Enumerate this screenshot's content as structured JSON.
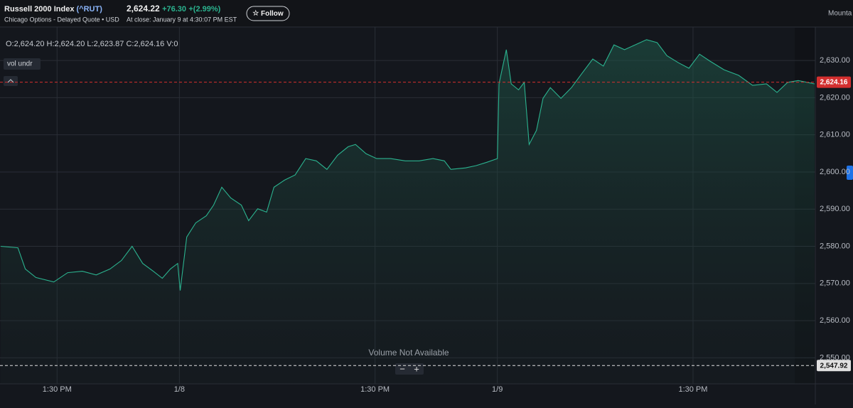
{
  "header": {
    "title": "Russell 2000 Index",
    "symbol": "(^RUT)",
    "exchange": "Chicago Options - Delayed Quote • USD",
    "price": "2,624.22",
    "change": "+76.30",
    "change_pct": "+(2.99%)",
    "close_time": "At close: January 9 at 4:30:07 PM EST",
    "follow": "Follow",
    "right_tab": "Mounta"
  },
  "ohlc": {
    "open": "O:2,624.20",
    "high": "H:2,624.20",
    "low": "L:2,623.87",
    "close": "C:2,624.16",
    "volume": "V:0"
  },
  "indicator": "vol undr",
  "volume_note": "Volume Not Available",
  "zoom": {
    "out": "−",
    "in": "+"
  },
  "chart_data": {
    "type": "line",
    "color": "#2bb38f",
    "grid": true,
    "xlim": [
      170,
      1170
    ],
    "ylim": [
      2543,
      2639
    ],
    "xticks": [
      {
        "value": 240,
        "label": "1:30 PM"
      },
      {
        "value": 390,
        "label": "1/8"
      },
      {
        "value": 630,
        "label": "1:30 PM"
      },
      {
        "value": 780,
        "label": "1/9"
      },
      {
        "value": 1020,
        "label": "1:30 PM"
      }
    ],
    "yticks": [
      {
        "value": 2550,
        "label": "2,550.00"
      },
      {
        "value": 2560,
        "label": "2,560.00"
      },
      {
        "value": 2570,
        "label": "2,570.00"
      },
      {
        "value": 2580,
        "label": "2,580.00"
      },
      {
        "value": 2590,
        "label": "2,590.00"
      },
      {
        "value": 2600,
        "label": "2,600.00"
      },
      {
        "value": 2610,
        "label": "2,610.00"
      },
      {
        "value": 2620,
        "label": "2,620.00"
      },
      {
        "value": 2630,
        "label": "2,630.00"
      }
    ],
    "price_lines": [
      {
        "value": 2624.16,
        "label": "2,624.16",
        "color": "#d32f2f"
      },
      {
        "value": 2547.92,
        "label": "2,547.92",
        "color": "#e0e0e0"
      }
    ],
    "x": [
      171,
      192,
      201,
      214,
      236,
      253,
      271,
      288,
      305,
      319,
      332,
      345,
      358,
      369,
      379,
      388,
      391,
      399,
      410,
      423,
      432,
      442,
      453,
      466,
      475,
      486,
      497,
      506,
      519,
      532,
      545,
      558,
      571,
      584,
      597,
      606,
      619,
      632,
      649,
      667,
      684,
      701,
      715,
      723,
      741,
      754,
      767,
      780,
      782,
      791,
      797,
      806,
      813,
      819,
      828,
      836,
      845,
      858,
      871,
      884,
      897,
      910,
      923,
      936,
      949,
      963,
      976,
      988,
      1002,
      1015,
      1028,
      1041,
      1058,
      1076,
      1093,
      1110,
      1123,
      1136,
      1149,
      1169
    ],
    "values": [
      2580.0,
      2579.6,
      2573.9,
      2571.6,
      2570.4,
      2572.9,
      2573.3,
      2572.3,
      2573.9,
      2576.2,
      2580.0,
      2575.4,
      2573.3,
      2571.4,
      2573.9,
      2575.4,
      2568.1,
      2582.5,
      2586.3,
      2588.2,
      2591.1,
      2595.9,
      2593.0,
      2591.1,
      2586.9,
      2590.1,
      2589.2,
      2595.9,
      2597.8,
      2599.2,
      2603.6,
      2603.0,
      2600.7,
      2604.5,
      2606.8,
      2607.4,
      2604.9,
      2603.6,
      2603.6,
      2603.0,
      2603.0,
      2603.6,
      2603.0,
      2600.7,
      2601.1,
      2601.7,
      2602.6,
      2603.6,
      2623.7,
      2632.9,
      2623.7,
      2622.1,
      2624.1,
      2607.4,
      2611.2,
      2619.8,
      2622.7,
      2619.8,
      2622.7,
      2626.6,
      2630.4,
      2628.5,
      2634.2,
      2632.9,
      2634.2,
      2635.6,
      2634.8,
      2631.3,
      2629.4,
      2627.9,
      2631.7,
      2629.8,
      2627.5,
      2626.0,
      2623.3,
      2623.7,
      2621.4,
      2624.1,
      2624.6,
      2623.7
    ]
  }
}
